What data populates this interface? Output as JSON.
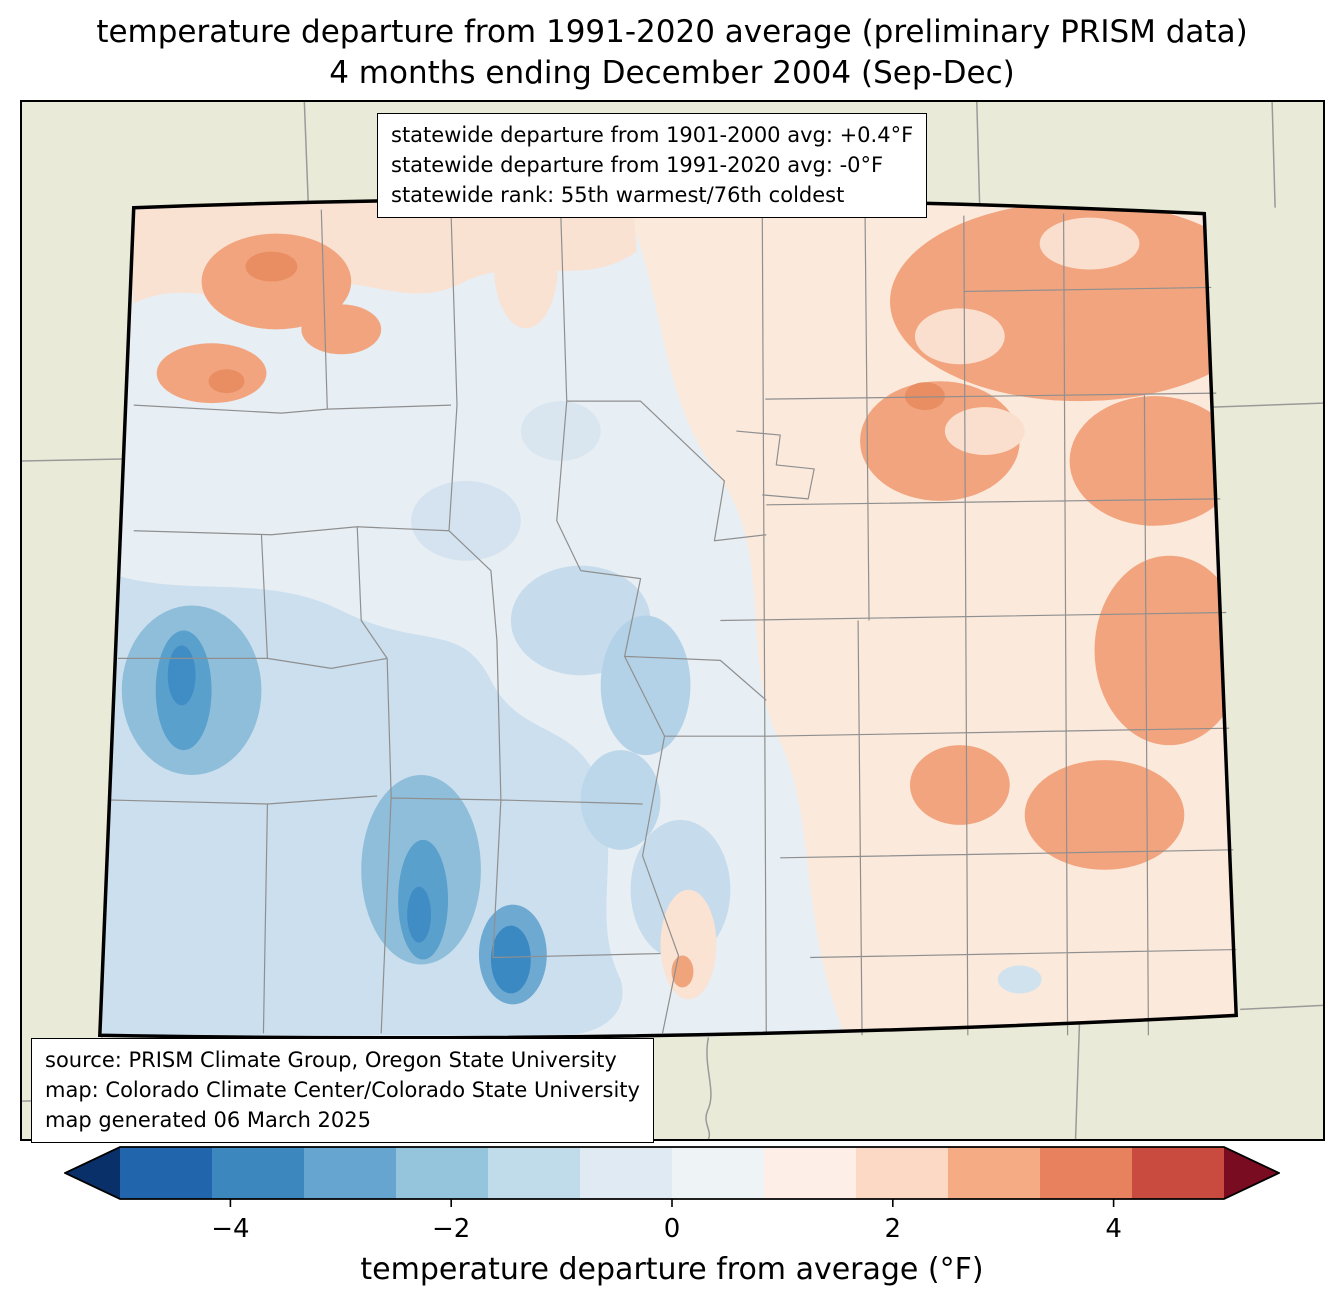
{
  "title": {
    "line1": "temperature departure from 1991-2020 average (preliminary PRISM data)",
    "line2": "4 months ending December 2004 (Sep-Dec)"
  },
  "stats_box": {
    "lines": [
      "statewide departure from 1901-2000 avg: +0.4°F",
      "statewide departure from 1991-2020 avg: -0°F",
      "statewide rank: 55th warmest/76th coldest"
    ]
  },
  "source_box": {
    "lines": [
      "source: PRISM Climate Group, Oregon State University",
      "map: Colorado Climate Center/Colorado State University",
      "map generated 06 March 2025"
    ]
  },
  "colorbar": {
    "label": "temperature departure from average (°F)",
    "tick_labels": [
      "−4",
      "−2",
      "0",
      "2",
      "4"
    ],
    "tick_values": [
      -4,
      -2,
      0,
      2,
      4
    ],
    "value_range": [
      -5,
      5
    ],
    "arrow_left_color": "#0a3069",
    "arrow_right_color": "#7a0c22",
    "segment_colors": [
      "#2166ac",
      "#3c87bd",
      "#66a5cf",
      "#95c5dd",
      "#c0dbea",
      "#dfeaf2",
      "#eef3f5",
      "#fdefe7",
      "#fbd9c4",
      "#f5ab84",
      "#e8825e",
      "#c94a3f"
    ]
  },
  "map": {
    "region_label": "Colorado",
    "outside_fill": "#eaead8",
    "state_border_color": "#000000",
    "county_line_color": "#8f8f8f",
    "cool_anomaly_colors": [
      "#e7eef4",
      "#c6dcec",
      "#8fbeda",
      "#5aa0cd",
      "#3f8dc4"
    ],
    "warm_anomaly_colors": [
      "#fbe9dc",
      "#fae2d2",
      "#f2a47e",
      "#e98d63"
    ]
  },
  "chart_data": {
    "type": "heatmap",
    "title": "temperature departure from 1991-2020 average (preliminary PRISM data)",
    "subtitle": "4 months ending December 2004 (Sep-Dec)",
    "region": "Colorado",
    "colorbar_label": "temperature departure from average (°F)",
    "colorbar_ticks": [
      -4,
      -2,
      0,
      2,
      4
    ],
    "colorbar_range": [
      -5,
      5
    ],
    "statewide_departure_from_1901_2000_avg_F": 0.4,
    "statewide_departure_from_1991_2020_avg_F": -0.0,
    "statewide_rank": "55th warmest/76th coldest",
    "pattern_summary": "cool (blue) anomalies over southwest and central mountains, warm (orange) anomalies over northwest corner and eastern plains"
  }
}
